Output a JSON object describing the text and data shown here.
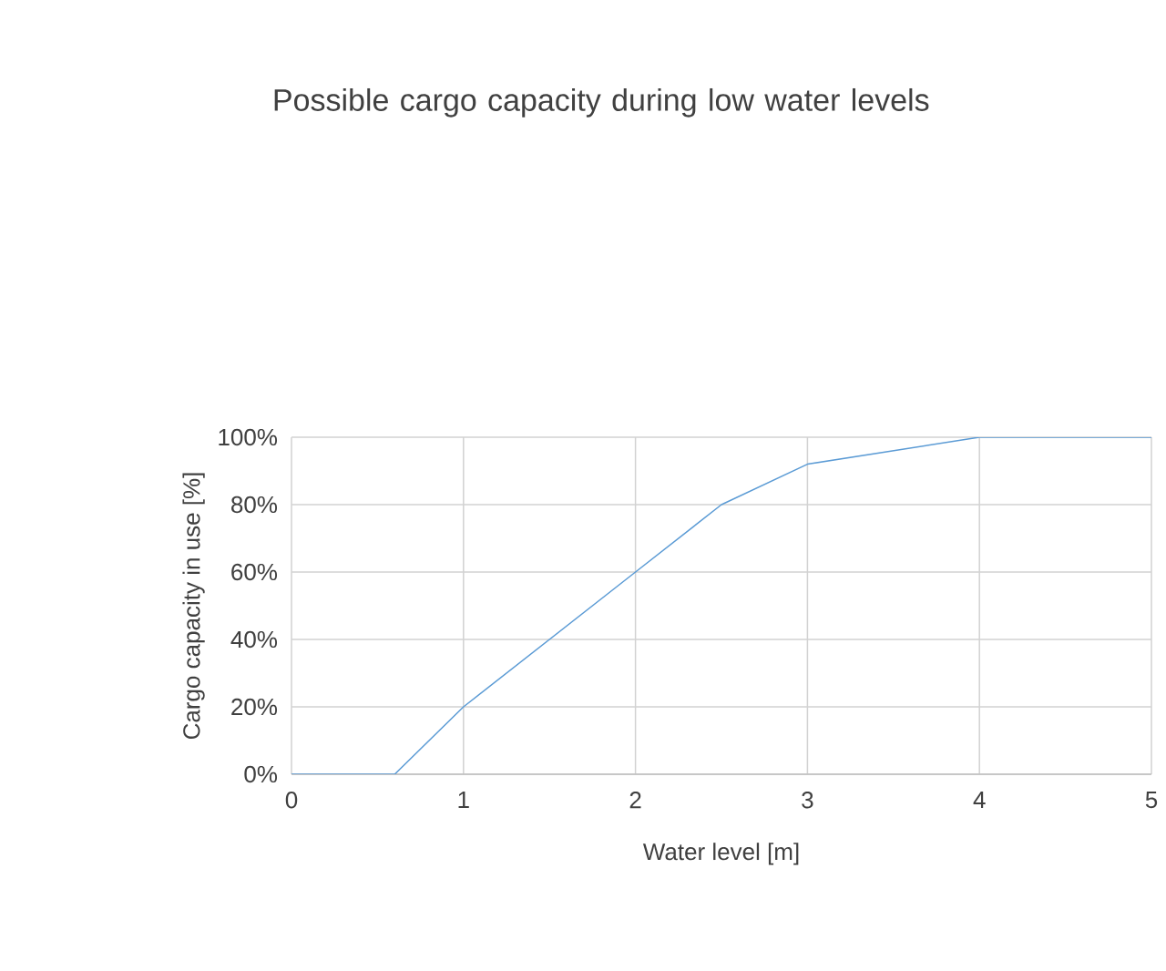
{
  "chart_data": {
    "type": "line",
    "title": "Possible cargo capacity during low water levels",
    "xlabel": "Water level [m]",
    "ylabel": "Cargo capacity in use [%]",
    "x": [
      0,
      0.6,
      1,
      2,
      2.5,
      3,
      4,
      5
    ],
    "series": [
      {
        "color": "#5b9bd5",
        "values": [
          0,
          0,
          20,
          60,
          80,
          92,
          100,
          100
        ]
      }
    ],
    "xlim": [
      0,
      5
    ],
    "xticks": [
      0,
      1,
      2,
      3,
      4,
      5
    ],
    "ylim": [
      0,
      100
    ],
    "yticks": [
      {
        "value": 0,
        "label": "0%"
      },
      {
        "value": 20,
        "label": "20%"
      },
      {
        "value": 40,
        "label": "40%"
      },
      {
        "value": 60,
        "label": "60%"
      },
      {
        "value": 80,
        "label": "80%"
      },
      {
        "value": 100,
        "label": "100%"
      }
    ],
    "grid": true,
    "marker": "none",
    "line_style": "solid"
  }
}
